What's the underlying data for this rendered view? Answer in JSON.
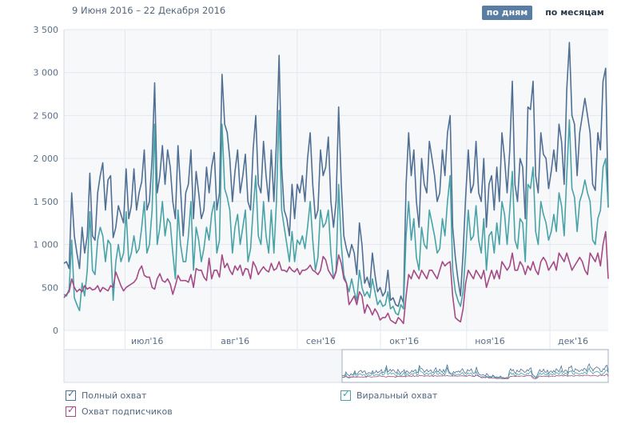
{
  "header": {
    "date_range": "9 Июня 2016 – 22 Декабря 2016",
    "btn_days": "по дням",
    "btn_months": "по месяцам"
  },
  "legend": {
    "full": "Полный охват",
    "viral": "Виральный охват",
    "subs": "Охват подписчиков",
    "check_glyph": "✓"
  },
  "colors": {
    "full": "#4f6f94",
    "viral": "#47a3a7",
    "subs": "#a54a86",
    "grid": "#e3e8ee",
    "plot_bg": "#f7f8fa",
    "axis_text": "#5b6e86"
  },
  "chart_data": {
    "type": "line",
    "ylim": [
      0,
      3500
    ],
    "yticks": [
      0,
      500,
      1000,
      1500,
      2000,
      2500,
      3000,
      3500
    ],
    "ytick_labels": [
      "0",
      "500",
      "1 000",
      "1 500",
      "2 000",
      "2 500",
      "3 000",
      "3 500"
    ],
    "x_start": "2016-06-09",
    "x_end": "2016-12-22",
    "month_ticks": [
      {
        "label": "июл'16",
        "date": "2016-07-01"
      },
      {
        "label": "авг'16",
        "date": "2016-08-01"
      },
      {
        "label": "сен'16",
        "date": "2016-09-01"
      },
      {
        "label": "окт'16",
        "date": "2016-10-01"
      },
      {
        "label": "ноя'16",
        "date": "2016-11-01"
      },
      {
        "label": "дек'16",
        "date": "2016-12-01"
      }
    ],
    "series": [
      {
        "name": "Полный охват",
        "color": "#4f6f94",
        "values": [
          780,
          800,
          720,
          1600,
          1100,
          900,
          720,
          1200,
          900,
          1100,
          1830,
          1100,
          1050,
          1600,
          1800,
          1950,
          1400,
          1750,
          1800,
          1080,
          1200,
          1450,
          1350,
          1250,
          1880,
          1300,
          1450,
          1880,
          1400,
          1600,
          1730,
          2100,
          1400,
          1500,
          2000,
          2880,
          1600,
          1800,
          2150,
          1700,
          2100,
          1900,
          1500,
          1300,
          2150,
          1650,
          1100,
          1600,
          1700,
          2100,
          1300,
          1850,
          1600,
          1300,
          1400,
          1900,
          1600,
          1900,
          2070,
          1400,
          1600,
          2980,
          2400,
          2300,
          2000,
          1500,
          1850,
          2100,
          1600,
          1800,
          2050,
          1500,
          1400,
          2100,
          2500,
          1700,
          1600,
          2200,
          1800,
          1500,
          2100,
          1500,
          2200,
          3200,
          1900,
          1400,
          1300,
          1100,
          1700,
          1300,
          1700,
          1600,
          1800,
          1500,
          2000,
          2300,
          1700,
          1300,
          1400,
          2100,
          1800,
          1900,
          2250,
          1500,
          1200,
          1500,
          2600,
          1700,
          1100,
          950,
          850,
          1000,
          900,
          650,
          1250,
          1000,
          550,
          620,
          500,
          900,
          650,
          450,
          500,
          400,
          450,
          700,
          350,
          380,
          300,
          280,
          400,
          320,
          1700,
          2300,
          1800,
          2100,
          1500,
          1200,
          2000,
          1700,
          1600,
          2200,
          2000,
          1800,
          1500,
          1600,
          2100,
          1800,
          2300,
          2500,
          1200,
          850,
          600,
          400,
          900,
          1550,
          2100,
          1600,
          1700,
          2200,
          1600,
          1500,
          2000,
          1200,
          1700,
          1800,
          1400,
          1900,
          1500,
          2300,
          2000,
          1600,
          2100,
          2900,
          1700,
          1500,
          2000,
          1900,
          1300,
          2600,
          2570,
          2900,
          1800,
          1600,
          2300,
          2050,
          2000,
          1650,
          1850,
          2100,
          1850,
          2400,
          2200,
          1700,
          2800,
          3350,
          2500,
          2400,
          1800,
          2300,
          2500,
          2700,
          2500,
          2300,
          1700,
          1630,
          2300,
          2100,
          2900,
          3050,
          1430
        ]
      },
      {
        "name": "Виральный охват",
        "color": "#47a3a7",
        "values": [
          420,
          400,
          480,
          1050,
          380,
          300,
          230,
          550,
          400,
          700,
          1380,
          700,
          650,
          1050,
          1200,
          1100,
          800,
          1050,
          1000,
          350,
          800,
          1000,
          800,
          900,
          1380,
          800,
          900,
          1100,
          900,
          950,
          1200,
          1500,
          900,
          1000,
          1400,
          2400,
          1000,
          1200,
          1500,
          1100,
          1300,
          1250,
          900,
          600,
          1400,
          1000,
          800,
          800,
          1100,
          1500,
          700,
          1200,
          1050,
          800,
          950,
          1200,
          1050,
          1350,
          1500,
          900,
          1050,
          2400,
          1650,
          1550,
          1400,
          900,
          1200,
          1350,
          1000,
          1200,
          1400,
          800,
          950,
          1400,
          1800,
          1100,
          1000,
          1500,
          1100,
          900,
          1400,
          900,
          1500,
          2560,
          1400,
          1200,
          1000,
          800,
          1150,
          800,
          1050,
          1000,
          1100,
          950,
          1200,
          1500,
          1050,
          700,
          850,
          1400,
          1200,
          1250,
          1400,
          900,
          600,
          700,
          1700,
          1000,
          650,
          550,
          450,
          600,
          450,
          350,
          700,
          500,
          400,
          450,
          380,
          600,
          450,
          300,
          350,
          280,
          300,
          450,
          250,
          280,
          200,
          180,
          300,
          250,
          1100,
          1500,
          1050,
          1300,
          850,
          700,
          1200,
          1000,
          950,
          1400,
          1250,
          1100,
          900,
          950,
          1300,
          1100,
          1500,
          1800,
          700,
          450,
          350,
          280,
          450,
          900,
          1400,
          1050,
          1100,
          1450,
          1050,
          900,
          1300,
          700,
          1100,
          1150,
          900,
          1250,
          1000,
          1500,
          1350,
          1000,
          1400,
          1850,
          1050,
          950,
          1300,
          1250,
          800,
          1700,
          1650,
          1900,
          1150,
          1000,
          1500,
          1350,
          1250,
          1050,
          1150,
          1350,
          1150,
          1600,
          1450,
          1100,
          1800,
          2450,
          1650,
          1550,
          1150,
          1500,
          1600,
          1750,
          1600,
          1500,
          1050,
          1000,
          1300,
          1400,
          1900,
          2000,
          1430
        ]
      },
      {
        "name": "Охват подписчиков",
        "color": "#a54a86",
        "values": [
          380,
          420,
          450,
          600,
          500,
          450,
          480,
          450,
          520,
          480,
          500,
          470,
          480,
          520,
          450,
          500,
          480,
          460,
          520,
          500,
          680,
          600,
          520,
          460,
          500,
          520,
          540,
          560,
          600,
          700,
          750,
          640,
          620,
          620,
          500,
          480,
          600,
          660,
          580,
          560,
          600,
          540,
          420,
          520,
          640,
          580,
          580,
          580,
          560,
          650,
          500,
          720,
          700,
          700,
          620,
          580,
          840,
          600,
          700,
          700,
          620,
          880,
          730,
          780,
          700,
          650,
          750,
          700,
          760,
          640,
          720,
          710,
          600,
          800,
          740,
          650,
          700,
          740,
          700,
          680,
          780,
          700,
          720,
          800,
          700,
          700,
          680,
          740,
          700,
          680,
          720,
          650,
          700,
          700,
          720,
          760,
          700,
          680,
          650,
          700,
          860,
          820,
          700,
          650,
          600,
          680,
          880,
          780,
          600,
          550,
          300,
          350,
          400,
          300,
          450,
          400,
          200,
          300,
          250,
          180,
          250,
          200,
          120,
          150,
          150,
          200,
          120,
          100,
          80,
          150,
          120,
          80,
          400,
          650,
          600,
          700,
          650,
          600,
          700,
          650,
          600,
          700,
          700,
          650,
          600,
          700,
          800,
          750,
          780,
          800,
          400,
          150,
          120,
          100,
          250,
          550,
          700,
          650,
          600,
          700,
          650,
          600,
          700,
          500,
          600,
          700,
          600,
          700,
          600,
          800,
          750,
          700,
          750,
          900,
          700,
          700,
          800,
          750,
          650,
          750,
          700,
          800,
          700,
          650,
          800,
          850,
          800,
          700,
          750,
          800,
          700,
          900,
          850,
          800,
          900,
          800,
          700,
          750,
          800,
          850,
          800,
          700,
          650,
          900,
          850,
          800,
          900,
          750,
          1000,
          1150,
          600
        ]
      }
    ]
  }
}
